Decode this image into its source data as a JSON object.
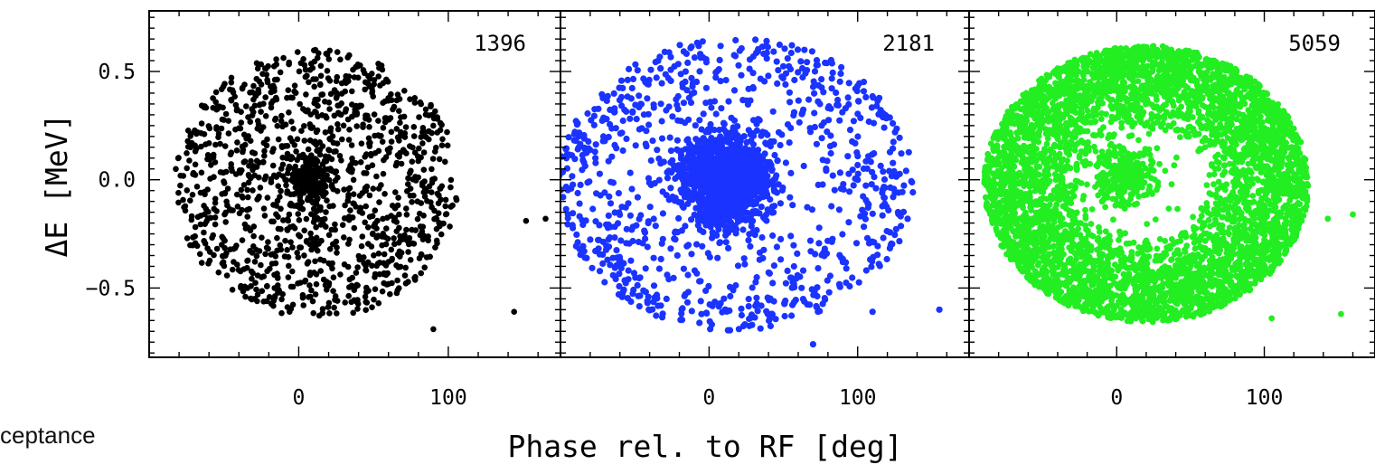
{
  "caption_fragment": "ceptance",
  "chart_data": {
    "type": "scatter",
    "xlabel": "Phase rel. to RF [deg]",
    "ylabel": "ΔE [MeV]",
    "xlim": [
      -100,
      175
    ],
    "ylim": [
      -0.82,
      0.78
    ],
    "x_ticks": [
      0,
      100
    ],
    "y_ticks": [
      -0.5,
      0.0,
      0.5
    ],
    "y_tick_labels": [
      "−0.5",
      "0.0",
      "0.5"
    ],
    "x_tick_labels": [
      "0",
      "100"
    ],
    "grid": false,
    "panels": [
      {
        "count_label": "1396",
        "color": "#000000",
        "n_points": 1396,
        "core": {
          "cx": 8,
          "cy": 0.0,
          "rx": 14,
          "ry": 0.12,
          "fraction": 0.15
        },
        "halo": {
          "cx": 12,
          "cy": -0.02,
          "rx": 95,
          "ry": 0.62,
          "fraction": 0.85
        },
        "outliers": [
          [
            152,
            -0.19
          ],
          [
            165,
            -0.18
          ],
          [
            90,
            -0.69
          ],
          [
            144,
            -0.61
          ]
        ]
      },
      {
        "count_label": "2181",
        "color": "#1a33ff",
        "n_points": 2181,
        "core": {
          "cx": 12,
          "cy": 0.0,
          "rx": 28,
          "ry": 0.2,
          "fraction": 0.62
        },
        "ring": {
          "cx": 18,
          "cy": -0.02,
          "rx_in": 45,
          "rx_out": 120,
          "ry_in": 0.3,
          "ry_out": 0.68,
          "fraction": 0.38
        },
        "outliers": [
          [
            -96,
            0.1
          ],
          [
            -95,
            -0.16
          ],
          [
            70,
            -0.76
          ],
          [
            110,
            -0.61
          ],
          [
            155,
            -0.6
          ]
        ]
      },
      {
        "count_label": "5059",
        "color": "#22ee22",
        "n_points": 5059,
        "core": {
          "cx": 5,
          "cy": 0.02,
          "rx": 22,
          "ry": 0.15,
          "fraction": 0.06
        },
        "ring": {
          "cx": 20,
          "cy": -0.02,
          "rx_in": 38,
          "rx_out": 110,
          "ry_in": 0.24,
          "ry_out": 0.64,
          "fraction": 0.94
        },
        "outliers": [
          [
            143,
            -0.18
          ],
          [
            160,
            -0.16
          ],
          [
            105,
            -0.64
          ],
          [
            152,
            -0.62
          ]
        ]
      }
    ]
  }
}
